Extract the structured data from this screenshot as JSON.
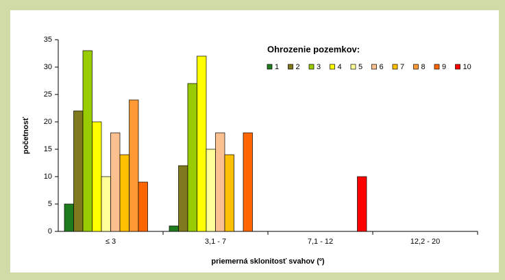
{
  "chart_data": {
    "type": "bar",
    "title": "Ohrozenie pozemkov:",
    "xlabel": "priemerná sklonitosť svahov (º)",
    "ylabel": "početnosť",
    "categories": [
      "≤ 3",
      "3,1 - 7",
      "7,1 - 12",
      "12,2 - 20"
    ],
    "series": [
      {
        "name": "1",
        "color": "#1e7b1e",
        "values": [
          5,
          1,
          0,
          0
        ]
      },
      {
        "name": "2",
        "color": "#807a1e",
        "values": [
          22,
          12,
          0,
          0
        ]
      },
      {
        "name": "3",
        "color": "#99cc00",
        "values": [
          33,
          27,
          0,
          0
        ]
      },
      {
        "name": "4",
        "color": "#ffff00",
        "values": [
          20,
          32,
          0,
          0
        ]
      },
      {
        "name": "5",
        "color": "#ffff99",
        "values": [
          10,
          15,
          0,
          0
        ]
      },
      {
        "name": "6",
        "color": "#fac090",
        "values": [
          18,
          18,
          0,
          0
        ]
      },
      {
        "name": "7",
        "color": "#ffc000",
        "values": [
          14,
          14,
          0,
          0
        ]
      },
      {
        "name": "8",
        "color": "#ff9933",
        "values": [
          24,
          0,
          0,
          0
        ]
      },
      {
        "name": "9",
        "color": "#ff6600",
        "values": [
          9,
          18,
          0,
          0
        ]
      },
      {
        "name": "10",
        "color": "#ff0000",
        "values": [
          0,
          0,
          10,
          0
        ]
      }
    ],
    "ylim": [
      0,
      35
    ],
    "yticks": [
      0,
      5,
      10,
      15,
      20,
      25,
      30,
      35
    ],
    "grid": false,
    "legend": "top-right"
  }
}
